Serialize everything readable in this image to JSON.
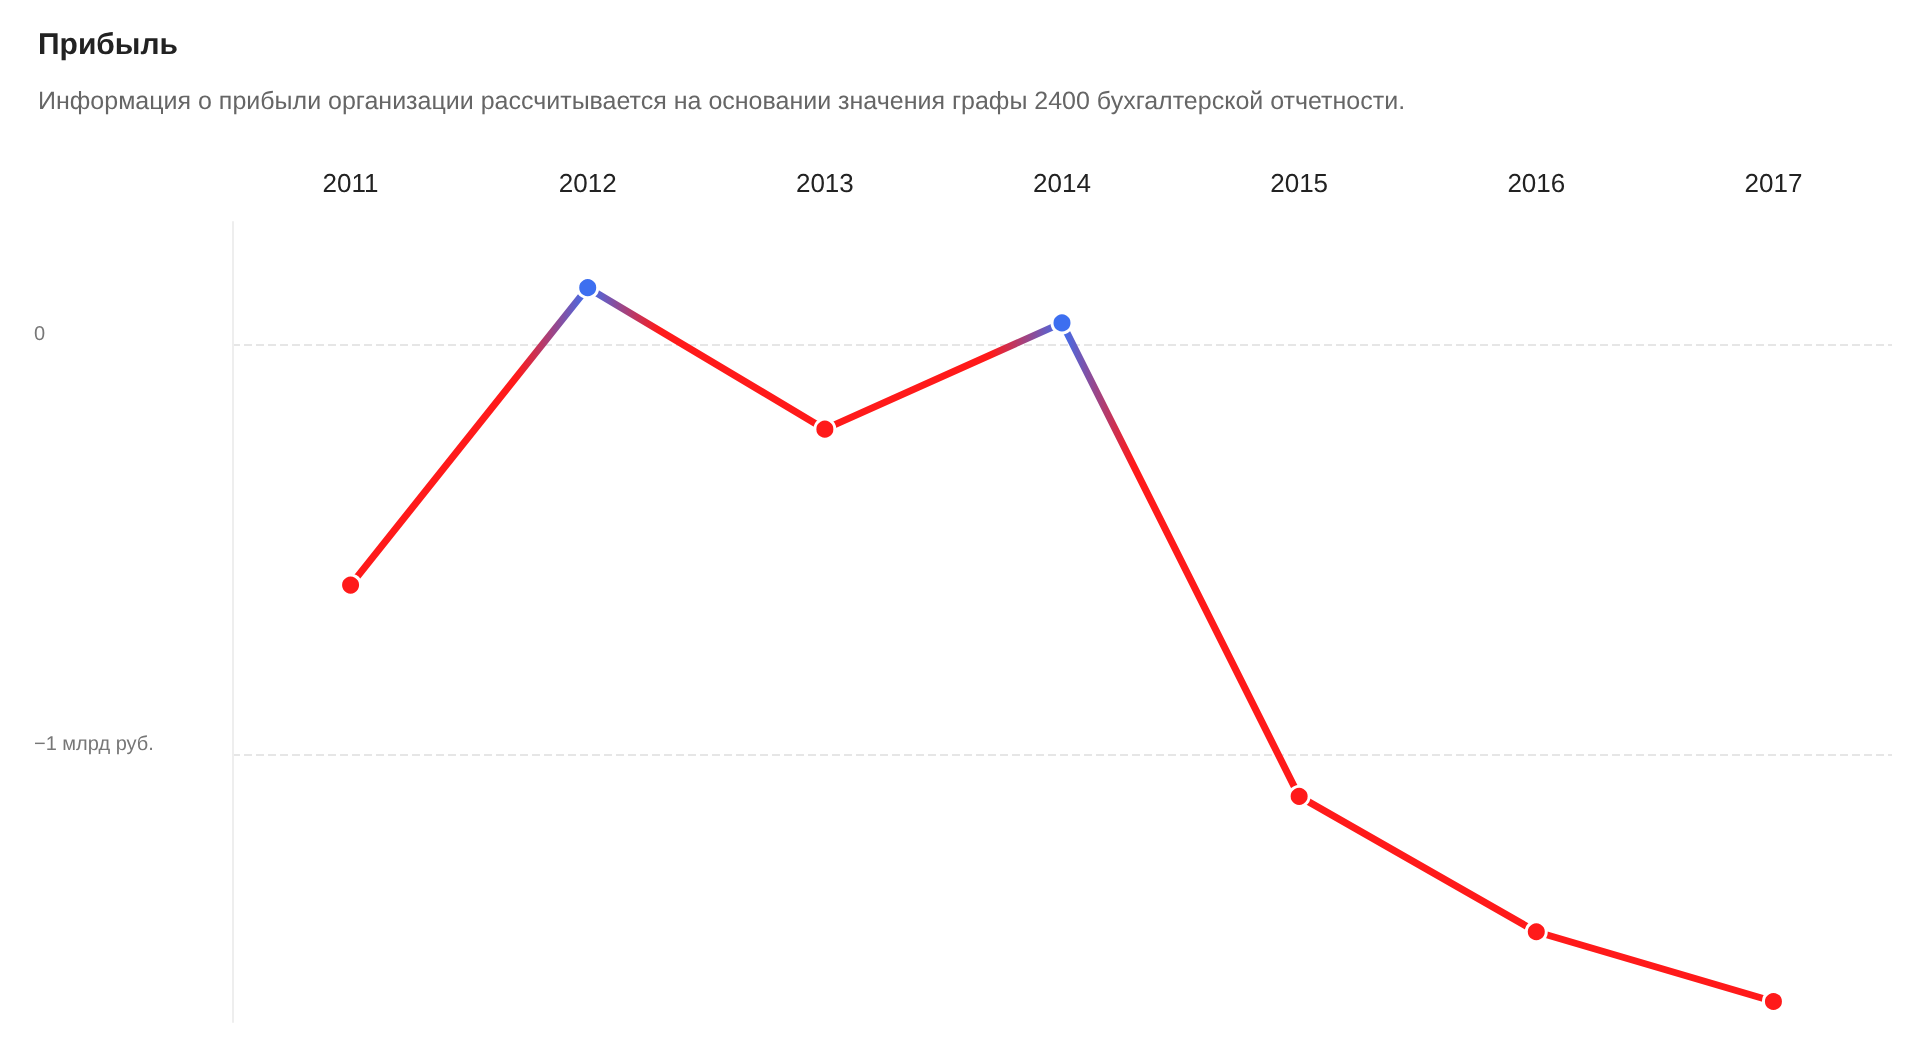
{
  "chart_data": {
    "type": "line",
    "title": "Прибыль",
    "subtitle": "Информация о прибыли организации рассчитывается на основании значения графы 2400 бухгалтерской отчетности.",
    "categories": [
      "2011",
      "2012",
      "2013",
      "2014",
      "2015",
      "2016",
      "2017"
    ],
    "series": [
      {
        "values": [
          -0.585,
          0.14,
          -0.205,
          0.054,
          -1.1,
          -1.43,
          -1.6
        ],
        "colors": [
          "#ff1a1a",
          "#3d6ff0",
          "#ff1a1a",
          "#3d6ff0",
          "#ff1a1a",
          "#ff1a1a",
          "#ff1a1a"
        ]
      }
    ],
    "ylim": [
      -1.65,
      0.3
    ],
    "yticks": [
      {
        "value": 0,
        "label": "0"
      },
      {
        "value": -1,
        "label": "−1 млрд руб."
      }
    ],
    "grid": "y",
    "marker": "circle",
    "line_style": "solid"
  }
}
